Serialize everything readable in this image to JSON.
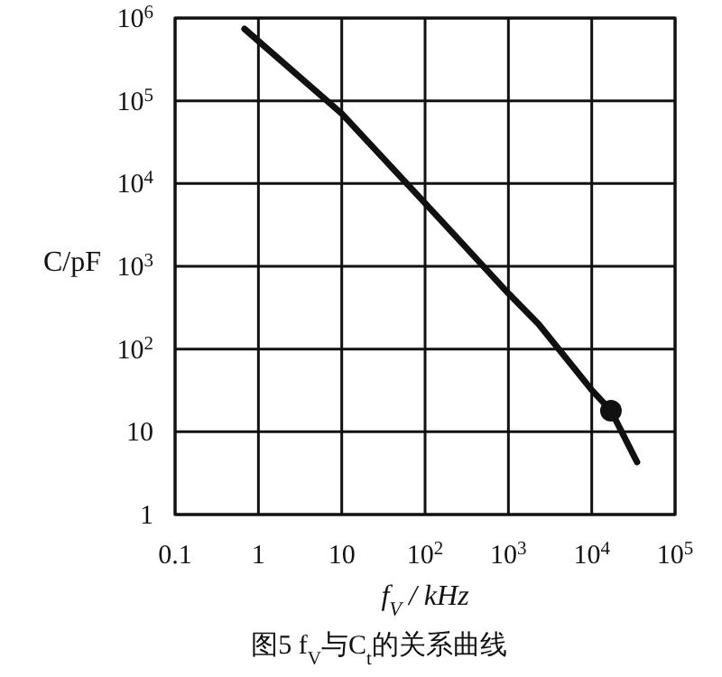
{
  "chart_data": {
    "type": "line",
    "xlabel": "f$_{V}$ / kHz",
    "ylabel": "C/pF",
    "annotations": [
      "图5   f$_{V}$与C$_{t}$的关系曲线"
    ],
    "series": [
      {
        "color": "#111111",
        "marker": "none",
        "x": [
          0.68,
          10,
          100,
          1000,
          2300,
          10000,
          17000,
          35000
        ],
        "values": [
          740000,
          70000,
          5800,
          470,
          200,
          32,
          18,
          4.3
        ]
      },
      {
        "type": "scatter",
        "color": "#111111",
        "marker": "circle",
        "x": [
          17000
        ],
        "values": [
          18
        ]
      }
    ],
    "log": "xy",
    "xlim": [
      0.1,
      100000
    ],
    "ylim": [
      1,
      1000000
    ],
    "xticks": [
      0.1,
      1,
      10,
      {
        "value": 100,
        "label": "10$^{2}$"
      },
      {
        "value": 1000,
        "label": "10$^{3}$"
      },
      {
        "value": 10000,
        "label": "10$^{4}$"
      },
      {
        "value": 100000,
        "label": "10$^{5}$"
      }
    ],
    "yticks": [
      1,
      10,
      {
        "value": 100,
        "label": "10$^{2}$"
      },
      {
        "value": 1000,
        "label": "10$^{3}$"
      },
      {
        "value": 10000,
        "label": "10$^{4}$"
      },
      {
        "value": 100000,
        "label": "10$^{5}$"
      },
      {
        "value": 1000000,
        "label": "10$^{6}$"
      }
    ],
    "grid": true,
    "line_style": "solid"
  }
}
